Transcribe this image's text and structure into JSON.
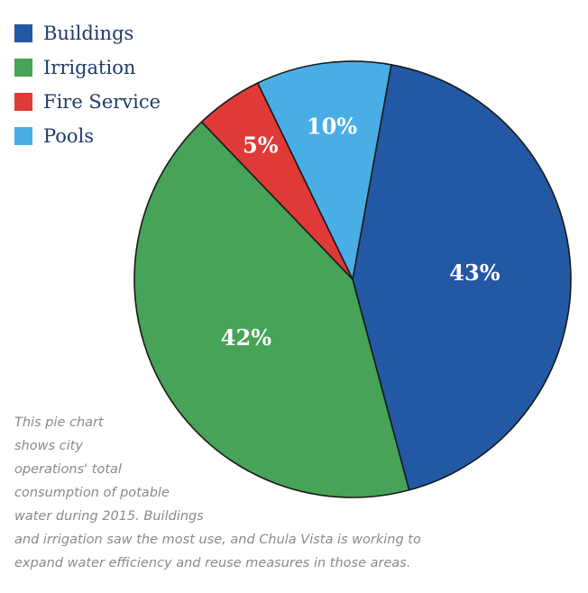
{
  "chart_data": {
    "type": "pie",
    "title": "",
    "categories": [
      "Buildings",
      "Irrigation",
      "Fire Service",
      "Pools"
    ],
    "values": [
      43,
      42,
      5,
      10
    ],
    "labels": [
      "43%",
      "42%",
      "5%",
      "10%"
    ],
    "colors": [
      "#2358a4",
      "#46a357",
      "#e03a38",
      "#4aaee6"
    ],
    "legend": {
      "position": "top-left",
      "entries": [
        "Buildings",
        "Irrigation",
        "Fire Service",
        "Pools"
      ]
    }
  },
  "caption": {
    "lines": [
      "This pie chart",
      "shows city",
      "operations' total",
      "consumption of potable",
      "water during 2015. Buildings",
      "and irrigation saw the most use, and Chula Vista is working to",
      "expand water efficiency and reuse measures in those areas."
    ]
  }
}
